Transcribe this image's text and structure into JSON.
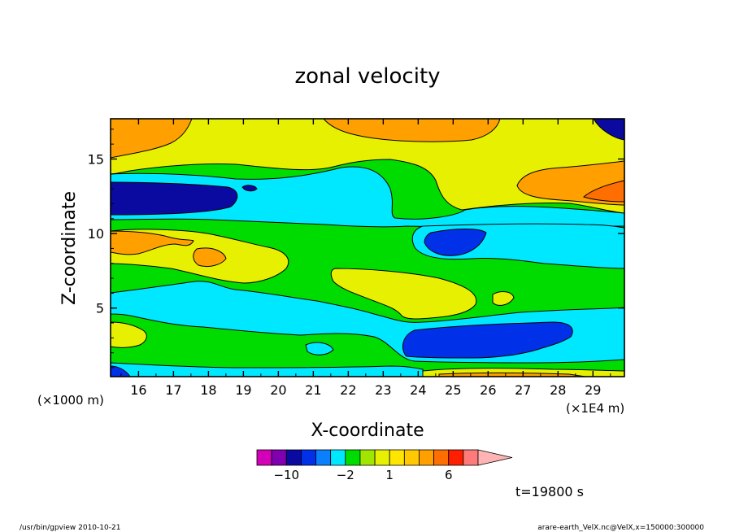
{
  "chart_data": {
    "type": "heatmap",
    "title": "zonal velocity",
    "xlabel": "X-coordinate",
    "ylabel": "Z-coordinate",
    "x_unit_left": "(×1000 m)",
    "x_unit_right": "(×1E4 m)",
    "xlim": [
      15.2,
      29.9
    ],
    "ylim": [
      0.4,
      17.7
    ],
    "x_ticks": [
      "16",
      "17",
      "18",
      "19",
      "20",
      "21",
      "22",
      "23",
      "24",
      "25",
      "26",
      "27",
      "28",
      "29"
    ],
    "y_ticks": [
      "5",
      "10",
      "15"
    ],
    "time_label": "t=19800 s",
    "colorbar": {
      "labels": [
        "−10",
        "−2",
        "1",
        "6"
      ],
      "label_levels": [
        -10,
        -2,
        1,
        6
      ],
      "levels": [
        -14,
        -12,
        -10,
        -8,
        -6,
        -4,
        -2,
        -1,
        0,
        1,
        2,
        3,
        4,
        6,
        8,
        10,
        12
      ],
      "colors": [
        "#d400b8",
        "#8000b0",
        "#0a0aa0",
        "#0030e8",
        "#0a80ff",
        "#00e8ff",
        "#00dc00",
        "#a0e600",
        "#e6f000",
        "#ffe600",
        "#ffc800",
        "#ffa000",
        "#ff6e00",
        "#ff1e00",
        "#ff7a7a",
        "#ffb4b4"
      ],
      "extend": "max"
    },
    "regions": [
      {
        "name": "top-orange-left",
        "level": 4
      },
      {
        "name": "top-orange-mid",
        "level": 4
      },
      {
        "name": "top-blue-right",
        "level": -6
      },
      {
        "name": "upper-yellow-band",
        "level": 2
      },
      {
        "name": "upper-cyan-band",
        "level": -1
      },
      {
        "name": "left-blue-core",
        "level": -6
      },
      {
        "name": "right-orange-core",
        "level": 4
      },
      {
        "name": "mid-green-band",
        "level": 0
      },
      {
        "name": "mid-blue-core",
        "level": -6
      },
      {
        "name": "left-yellow-orange-core",
        "level": 3
      },
      {
        "name": "central-yellow-core",
        "level": 2
      },
      {
        "name": "lower-cyan-band",
        "level": -1
      },
      {
        "name": "bottom-blue-core",
        "level": -6
      },
      {
        "name": "bottom-yellow-core",
        "level": 2
      }
    ]
  },
  "footer": {
    "left": "/usr/bin/gpview  2010-10-21",
    "right": "arare-earth_VelX.nc@VelX,x=150000:300000"
  }
}
